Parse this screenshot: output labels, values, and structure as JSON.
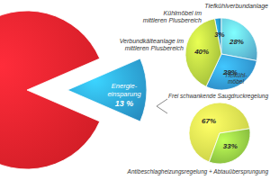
{
  "chart_data": [
    {
      "type": "pie",
      "categories": [
        null,
        "Energie-einsparung"
      ],
      "values": [
        87,
        13
      ],
      "colors": [
        "#e3202a",
        "#2b9ad3"
      ],
      "data_labels": true,
      "value_labels": [
        null,
        "13 %"
      ]
    },
    {
      "type": "pie",
      "categories": [
        "Kühlmöbel im mittleren Plusbereich",
        "Tiefkühlverbundanlage",
        "Tiefkühl-möbel",
        "Verbundkälteanlage im mittleren Plusbereich"
      ],
      "values": [
        3,
        28,
        29,
        40
      ],
      "colors": [
        "#1f86b3",
        "#5db9dc",
        "#2f90d0",
        "#a9c93c"
      ],
      "data_labels": true,
      "value_labels": [
        "3%",
        "28%",
        "29%",
        "40%"
      ]
    },
    {
      "type": "pie",
      "categories": [
        "Frei schwankende Saugdruckregelung",
        "Antibeschlagheizungsregelung + Abtauübersprungung"
      ],
      "values": [
        67,
        33
      ],
      "colors": [
        "#d6df4a",
        "#8cc540"
      ],
      "data_labels": true,
      "value_labels": [
        "67%",
        "33%"
      ]
    }
  ]
}
